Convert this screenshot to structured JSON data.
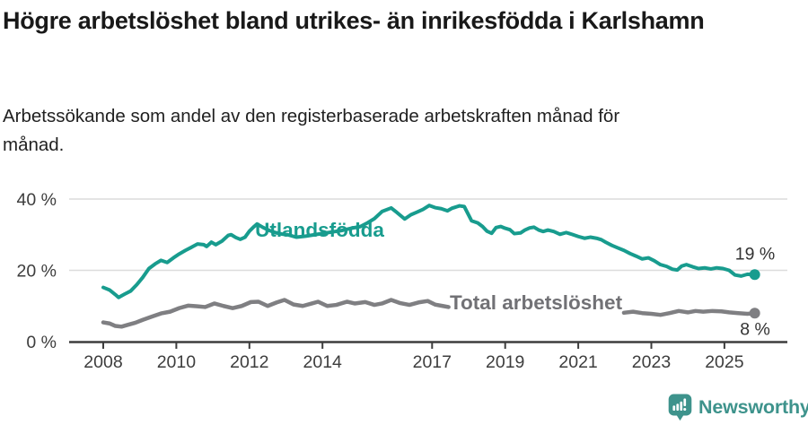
{
  "header": {
    "title": "Högre arbetslöshet bland utrikes- än inrikesfödda i Karlshamn",
    "subtitle": "Arbetssökande som andel av den registerbaserade arbetskraften månad för månad."
  },
  "axis": {
    "color": "#3d3d3d",
    "grid_color": "#dcdcdc",
    "background": "#ffffff"
  },
  "footer": {
    "brand": "Newsworthy",
    "brand_color": "#3e938c"
  },
  "chart_data": {
    "type": "line",
    "title": "Högre arbetslöshet bland utrikes- än inrikesfödda i Karlshamn",
    "subtitle": "Arbetssökande som andel av den registerbaserade arbetskraften månad för månad.",
    "x_unit": "decimal_year_monthly",
    "y_unit": "percent",
    "xlim": [
      2007.1,
      2026.7
    ],
    "ylim": [
      0,
      42.5
    ],
    "grid": "horizontal",
    "legend_position": "inline-labels",
    "x_ticks": [
      {
        "value": 2008,
        "label": "2008"
      },
      {
        "value": 2010,
        "label": "2010"
      },
      {
        "value": 2012,
        "label": "2012"
      },
      {
        "value": 2014,
        "label": "2014"
      },
      {
        "value": 2017,
        "label": "2017"
      },
      {
        "value": 2019,
        "label": "2019"
      },
      {
        "value": 2021,
        "label": "2021"
      },
      {
        "value": 2023,
        "label": "2023"
      },
      {
        "value": 2025,
        "label": "2025"
      }
    ],
    "y_ticks": [
      {
        "value": 0,
        "label": "0 %"
      },
      {
        "value": 20,
        "label": "20 %"
      },
      {
        "value": 40,
        "label": "40 %"
      }
    ],
    "series": [
      {
        "name": "Utlandsfödda",
        "color": "#189c8e",
        "end_label": "19 %",
        "end_value": 19,
        "segments": [
          [
            [
              2008.0,
              15.2
            ],
            [
              2008.17,
              14.5
            ],
            [
              2008.33,
              13.2
            ],
            [
              2008.42,
              12.4
            ],
            [
              2008.58,
              13.3
            ],
            [
              2008.75,
              14.2
            ],
            [
              2008.92,
              16.0
            ],
            [
              2009.08,
              18.0
            ],
            [
              2009.25,
              20.5
            ],
            [
              2009.42,
              21.8
            ],
            [
              2009.58,
              22.8
            ],
            [
              2009.75,
              22.2
            ],
            [
              2009.92,
              23.5
            ],
            [
              2010.08,
              24.6
            ],
            [
              2010.25,
              25.6
            ],
            [
              2010.42,
              26.5
            ],
            [
              2010.58,
              27.4
            ],
            [
              2010.75,
              27.2
            ],
            [
              2010.83,
              26.7
            ],
            [
              2010.96,
              27.9
            ],
            [
              2011.08,
              27.2
            ],
            [
              2011.25,
              28.2
            ],
            [
              2011.42,
              29.8
            ],
            [
              2011.5,
              30.0
            ],
            [
              2011.63,
              29.2
            ],
            [
              2011.75,
              28.7
            ],
            [
              2011.88,
              29.3
            ],
            [
              2012.0,
              31.0
            ],
            [
              2012.13,
              32.3
            ],
            [
              2012.21,
              33.0
            ],
            [
              2012.38,
              32.0
            ],
            [
              2012.54,
              31.2
            ],
            [
              2012.71,
              30.6
            ],
            [
              2012.88,
              30.2
            ],
            [
              2013.04,
              30.0
            ],
            [
              2013.29,
              29.3
            ],
            [
              2013.54,
              29.6
            ],
            [
              2013.79,
              30.0
            ],
            [
              2014.04,
              30.4
            ],
            [
              2014.29,
              30.8
            ],
            [
              2014.54,
              31.2
            ],
            [
              2014.79,
              31.8
            ],
            [
              2015.04,
              32.3
            ],
            [
              2015.21,
              33.2
            ],
            [
              2015.42,
              34.5
            ],
            [
              2015.63,
              36.5
            ],
            [
              2015.88,
              37.5
            ],
            [
              2016.04,
              36.2
            ],
            [
              2016.25,
              34.4
            ],
            [
              2016.42,
              35.6
            ],
            [
              2016.58,
              36.3
            ],
            [
              2016.75,
              37.1
            ],
            [
              2016.92,
              38.2
            ],
            [
              2017.08,
              37.6
            ],
            [
              2017.25,
              37.3
            ],
            [
              2017.42,
              36.7
            ],
            [
              2017.54,
              37.4
            ],
            [
              2017.75,
              38.1
            ],
            [
              2017.88,
              37.9
            ],
            [
              2017.96,
              36.3
            ],
            [
              2018.08,
              33.9
            ],
            [
              2018.25,
              33.3
            ],
            [
              2018.38,
              32.3
            ],
            [
              2018.5,
              31.0
            ],
            [
              2018.63,
              30.4
            ],
            [
              2018.75,
              32.0
            ],
            [
              2018.88,
              32.3
            ],
            [
              2019.0,
              31.8
            ],
            [
              2019.13,
              31.4
            ],
            [
              2019.25,
              30.3
            ],
            [
              2019.42,
              30.5
            ],
            [
              2019.54,
              31.3
            ],
            [
              2019.67,
              31.9
            ],
            [
              2019.79,
              32.1
            ],
            [
              2019.92,
              31.3
            ],
            [
              2020.04,
              30.9
            ],
            [
              2020.17,
              31.3
            ],
            [
              2020.33,
              30.9
            ],
            [
              2020.5,
              30.1
            ],
            [
              2020.67,
              30.6
            ],
            [
              2020.83,
              30.1
            ],
            [
              2021.0,
              29.5
            ],
            [
              2021.17,
              29.0
            ],
            [
              2021.33,
              29.3
            ],
            [
              2021.5,
              29.0
            ],
            [
              2021.63,
              28.6
            ],
            [
              2021.75,
              27.9
            ],
            [
              2021.92,
              27.0
            ],
            [
              2022.08,
              26.3
            ],
            [
              2022.25,
              25.6
            ],
            [
              2022.42,
              24.7
            ],
            [
              2022.58,
              24.0
            ],
            [
              2022.75,
              23.2
            ],
            [
              2022.92,
              23.5
            ],
            [
              2023.08,
              22.7
            ],
            [
              2023.25,
              21.6
            ],
            [
              2023.42,
              21.1
            ],
            [
              2023.58,
              20.3
            ],
            [
              2023.71,
              20.1
            ],
            [
              2023.83,
              21.2
            ],
            [
              2023.96,
              21.6
            ],
            [
              2024.13,
              21.0
            ],
            [
              2024.29,
              20.5
            ],
            [
              2024.46,
              20.7
            ],
            [
              2024.63,
              20.4
            ],
            [
              2024.79,
              20.7
            ],
            [
              2024.96,
              20.5
            ],
            [
              2025.13,
              20.0
            ],
            [
              2025.29,
              18.7
            ],
            [
              2025.46,
              18.4
            ],
            [
              2025.63,
              18.9
            ],
            [
              2025.83,
              18.8
            ]
          ]
        ]
      },
      {
        "name": "Total arbetslöshet",
        "color": "#7f7f82",
        "label_color": "#717175",
        "end_label": "8 %",
        "end_value": 8,
        "segments": [
          [
            [
              2008.0,
              5.4
            ],
            [
              2008.17,
              5.1
            ],
            [
              2008.33,
              4.4
            ],
            [
              2008.5,
              4.2
            ],
            [
              2008.67,
              4.7
            ],
            [
              2008.88,
              5.3
            ],
            [
              2009.08,
              6.1
            ],
            [
              2009.33,
              7.0
            ],
            [
              2009.58,
              7.9
            ],
            [
              2009.83,
              8.4
            ],
            [
              2010.08,
              9.4
            ],
            [
              2010.33,
              10.1
            ],
            [
              2010.58,
              9.9
            ],
            [
              2010.79,
              9.7
            ],
            [
              2011.04,
              10.7
            ],
            [
              2011.29,
              10.0
            ],
            [
              2011.54,
              9.4
            ],
            [
              2011.79,
              10.0
            ],
            [
              2012.04,
              11.1
            ],
            [
              2012.25,
              11.2
            ],
            [
              2012.5,
              10.0
            ],
            [
              2012.75,
              11.0
            ],
            [
              2012.96,
              11.7
            ],
            [
              2013.21,
              10.4
            ],
            [
              2013.46,
              10.0
            ],
            [
              2013.71,
              10.7
            ],
            [
              2013.88,
              11.2
            ],
            [
              2014.13,
              10.0
            ],
            [
              2014.38,
              10.3
            ],
            [
              2014.67,
              11.2
            ],
            [
              2014.88,
              10.7
            ],
            [
              2015.17,
              11.1
            ],
            [
              2015.42,
              10.3
            ],
            [
              2015.63,
              10.7
            ],
            [
              2015.88,
              11.7
            ],
            [
              2016.13,
              10.8
            ],
            [
              2016.38,
              10.3
            ],
            [
              2016.63,
              11.0
            ],
            [
              2016.88,
              11.4
            ],
            [
              2017.08,
              10.4
            ],
            [
              2017.29,
              10.0
            ],
            [
              2017.45,
              9.7
            ]
          ],
          [
            [
              2022.25,
              8.1
            ],
            [
              2022.5,
              8.4
            ],
            [
              2022.75,
              8.0
            ],
            [
              2023.0,
              7.8
            ],
            [
              2023.25,
              7.5
            ],
            [
              2023.5,
              8.0
            ],
            [
              2023.75,
              8.6
            ],
            [
              2024.0,
              8.2
            ],
            [
              2024.21,
              8.6
            ],
            [
              2024.42,
              8.4
            ],
            [
              2024.67,
              8.6
            ],
            [
              2024.92,
              8.5
            ],
            [
              2025.13,
              8.2
            ],
            [
              2025.38,
              8.0
            ],
            [
              2025.63,
              7.8
            ],
            [
              2025.83,
              8.0
            ]
          ]
        ]
      }
    ]
  }
}
